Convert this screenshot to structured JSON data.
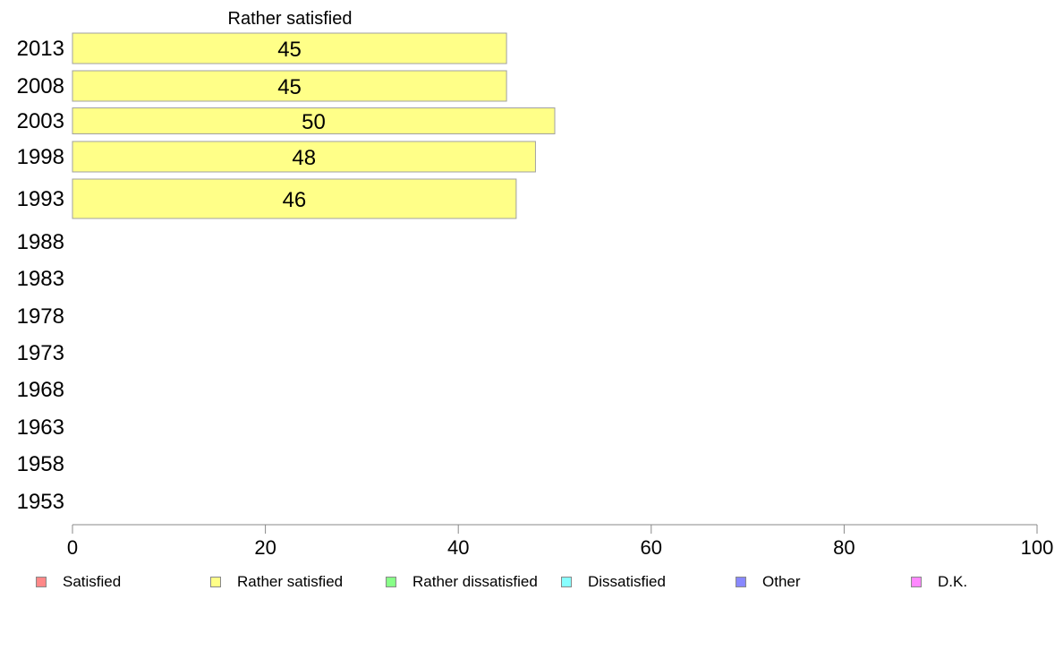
{
  "chart_data": {
    "type": "bar",
    "orientation": "horizontal",
    "title": "Rather satisfied",
    "categories": [
      "2013",
      "2008",
      "2003",
      "1998",
      "1993",
      "1988",
      "1983",
      "1978",
      "1973",
      "1968",
      "1963",
      "1958",
      "1953"
    ],
    "series": [
      {
        "name": "Rather satisfied",
        "values": [
          45,
          45,
          50,
          48,
          46,
          null,
          null,
          null,
          null,
          null,
          null,
          null,
          null
        ],
        "labels": [
          "45",
          "45",
          "50",
          "48",
          "46",
          "",
          "",
          "",
          "",
          "",
          "",
          "",
          ""
        ],
        "color": "#ffff88"
      }
    ],
    "xlim": [
      0,
      100
    ],
    "xticks": [
      "0",
      "20",
      "40",
      "60",
      "80",
      "100"
    ],
    "grid": false,
    "legend_position": "bottom"
  },
  "legend": {
    "items": [
      {
        "label": "Satisfied",
        "color": "#ff8888"
      },
      {
        "label": "Rather satisfied",
        "color": "#ffff88"
      },
      {
        "label": "Rather dissatisfied",
        "color": "#88ff88"
      },
      {
        "label": "Dissatisfied",
        "color": "#88ffff"
      },
      {
        "label": "Other",
        "color": "#8888ff"
      },
      {
        "label": "D.K.",
        "color": "#ff88ff"
      }
    ]
  }
}
